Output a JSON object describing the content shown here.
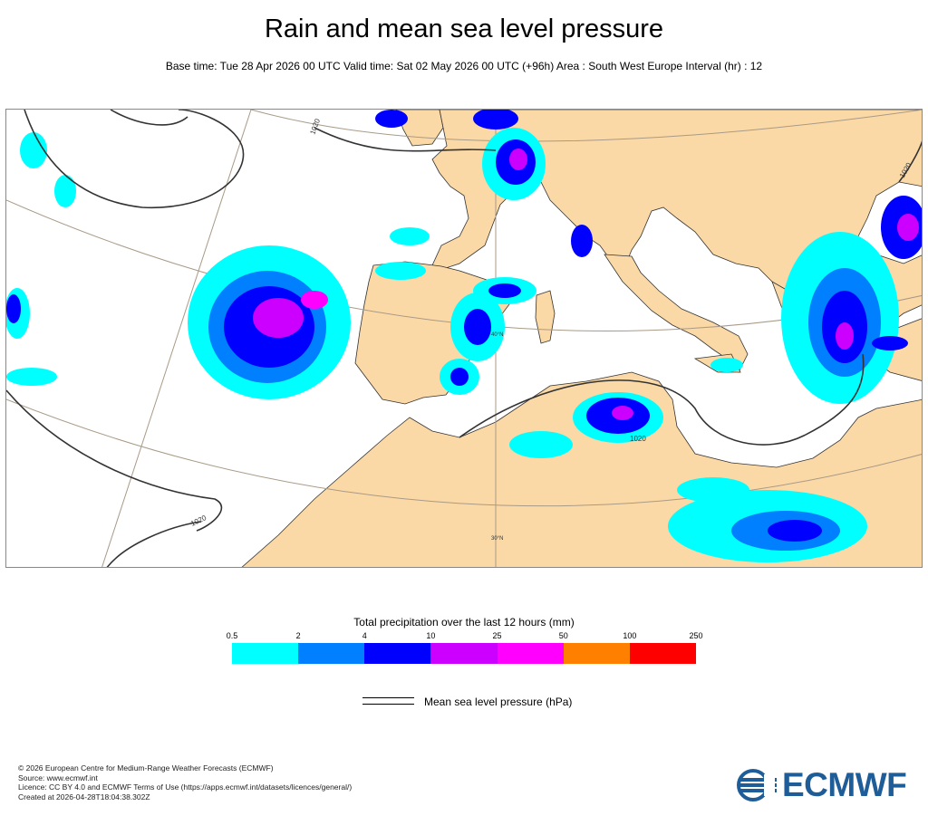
{
  "header": {
    "title": "Rain and mean sea level pressure",
    "subtitle": "Base time: Tue 28 Apr 2026 00 UTC Valid time: Sat 02 May 2026 00 UTC (+96h) Area : South West Europe Interval (hr) : 12"
  },
  "map": {
    "isobar_labels": [
      "1020",
      "1020",
      "1020",
      "1020"
    ],
    "lat_labels": [
      "40°N",
      "30°N"
    ],
    "land_color": "#fbd9a6",
    "sea_color": "#ffffff"
  },
  "legend": {
    "title": "Total precipitation over the last 12 hours (mm)",
    "thresholds": [
      "0.5",
      "2",
      "4",
      "10",
      "25",
      "50",
      "100",
      "250"
    ],
    "colors": [
      "#00ffff",
      "#0080ff",
      "#0000ff",
      "#cc00ff",
      "#ff00ff",
      "#ff8000",
      "#ff0000"
    ],
    "isobar_label": "Mean sea level pressure (hPa)"
  },
  "footer": {
    "lines": [
      "© 2026 European Centre for Medium-Range Weather Forecasts (ECMWF)",
      "Source: www.ecmwf.int",
      "Licence: CC BY 4.0 and ECMWF Terms of Use (https://apps.ecmwf.int/datasets/licences/general/)",
      "Created at 2026-04-28T18:04:38.302Z"
    ]
  },
  "logo": {
    "text": "ECMWF",
    "color": "#1f5d99"
  }
}
